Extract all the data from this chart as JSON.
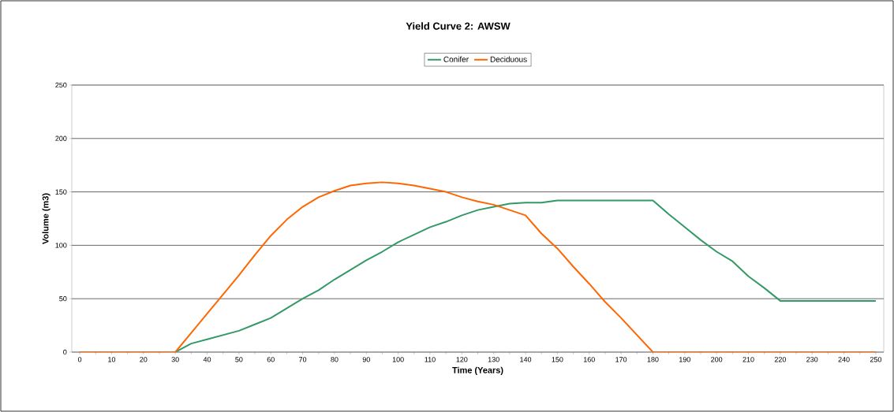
{
  "chart_data": {
    "type": "line",
    "title": "Yield Curve 2: AWSW",
    "xlabel": "Time (Years)",
    "ylabel": "Volume (m3)",
    "x": [
      0,
      5,
      10,
      15,
      20,
      25,
      30,
      35,
      40,
      45,
      50,
      55,
      60,
      65,
      70,
      75,
      80,
      85,
      90,
      95,
      100,
      105,
      110,
      115,
      120,
      125,
      130,
      135,
      140,
      145,
      150,
      155,
      160,
      165,
      170,
      175,
      180,
      185,
      190,
      195,
      200,
      205,
      210,
      215,
      220,
      225,
      230,
      235,
      240,
      245,
      250
    ],
    "series": [
      {
        "name": "Conifer",
        "color": "#339966",
        "values": [
          null,
          null,
          null,
          null,
          null,
          null,
          0,
          8,
          12,
          16,
          20,
          26,
          32,
          41,
          50,
          58,
          68,
          77,
          86,
          94,
          103,
          110,
          117,
          122,
          128,
          133,
          136,
          139,
          140,
          140,
          142,
          142,
          142,
          142,
          142,
          142,
          142,
          129,
          117,
          105,
          94,
          85,
          71,
          60,
          48,
          48,
          48,
          48,
          48,
          48,
          48
        ]
      },
      {
        "name": "Deciduous",
        "color": "#ff6600",
        "values": [
          0,
          0,
          0,
          0,
          0,
          0,
          0,
          18,
          36,
          54,
          72,
          91,
          109,
          124,
          136,
          145,
          151,
          156,
          158,
          159,
          158,
          156,
          153,
          150,
          145,
          141,
          138,
          133,
          128,
          111,
          97,
          80,
          64,
          47,
          32,
          16,
          0,
          0,
          0,
          0,
          0,
          0,
          0,
          0,
          0,
          0,
          0,
          0,
          0,
          0,
          0
        ]
      }
    ],
    "xlim": [
      -2.5,
      252.5
    ],
    "xticks": [
      0,
      10,
      20,
      30,
      40,
      50,
      60,
      70,
      80,
      90,
      100,
      110,
      120,
      130,
      140,
      150,
      160,
      170,
      180,
      190,
      200,
      210,
      220,
      230,
      240,
      250
    ],
    "ylim": [
      0,
      250
    ],
    "yticks": [
      0,
      50,
      100,
      150,
      200,
      250
    ],
    "grid": "y",
    "legend": "top",
    "marker": "none",
    "line_style": "solid"
  }
}
